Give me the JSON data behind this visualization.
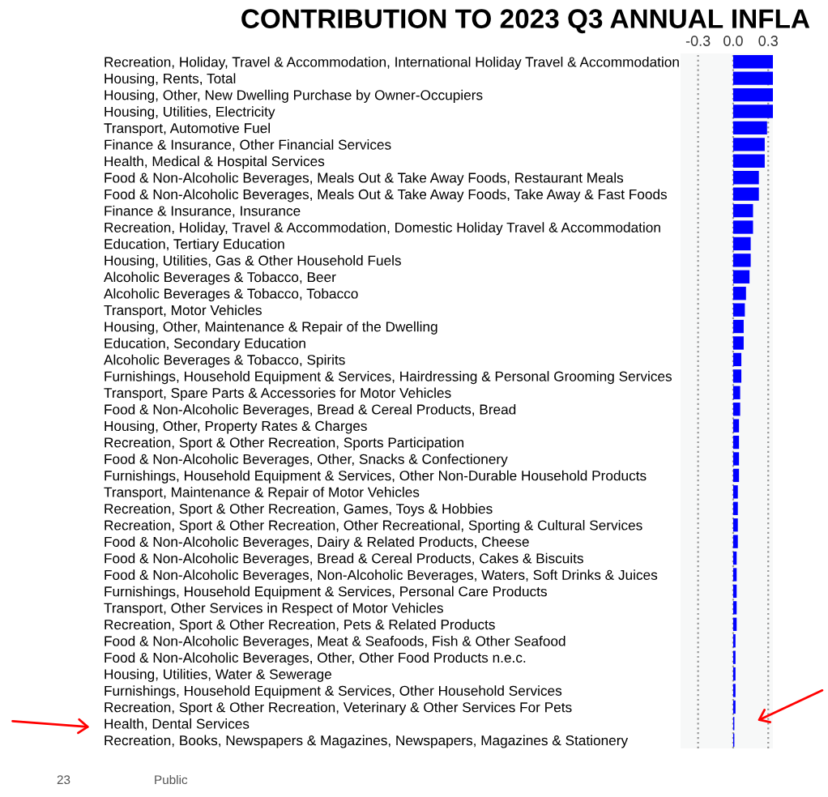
{
  "chart_data": {
    "type": "bar",
    "orientation": "horizontal",
    "title": "CONTRIBUTION TO 2023 Q3 ANNUAL INFLA",
    "categories": [
      "Recreation, Holiday, Travel & Accommodation, International Holiday Travel & Accommodation",
      "Housing, Rents, Total",
      "Housing, Other, New Dwelling Purchase by Owner-Occupiers",
      "Housing, Utilities, Electricity",
      "Transport, Automotive Fuel",
      "Finance & Insurance, Other Financial Services",
      "Health, Medical & Hospital Services",
      "Food & Non-Alcoholic Beverages, Meals Out & Take Away Foods, Restaurant Meals",
      "Food & Non-Alcoholic Beverages, Meals Out & Take Away Foods, Take Away & Fast Foods",
      "Finance & Insurance, Insurance",
      "Recreation, Holiday, Travel & Accommodation, Domestic Holiday Travel & Accommodation",
      "Education, Tertiary Education",
      "Housing, Utilities, Gas & Other Household Fuels",
      "Alcoholic Beverages & Tobacco, Beer",
      "Alcoholic Beverages & Tobacco, Tobacco",
      "Transport, Motor Vehicles",
      "Housing, Other, Maintenance & Repair of the Dwelling",
      "Education, Secondary Education",
      "Alcoholic Beverages & Tobacco, Spirits",
      "Furnishings, Household Equipment & Services, Hairdressing & Personal Grooming Services",
      "Transport, Spare Parts & Accessories for Motor Vehicles",
      "Food & Non-Alcoholic Beverages, Bread & Cereal Products, Bread",
      "Housing, Other, Property Rates & Charges",
      "Recreation, Sport & Other Recreation, Sports Participation",
      "Food & Non-Alcoholic Beverages, Other, Snacks & Confectionery",
      "Furnishings, Household Equipment & Services, Other Non-Durable Household Products",
      "Transport, Maintenance & Repair of Motor Vehicles",
      "Recreation, Sport & Other Recreation, Games, Toys & Hobbies",
      "Recreation, Sport & Other Recreation, Other Recreational, Sporting & Cultural Services",
      "Food & Non-Alcoholic Beverages, Dairy & Related Products, Cheese",
      "Food & Non-Alcoholic Beverages, Bread & Cereal Products, Cakes & Biscuits",
      "Food & Non-Alcoholic Beverages, Non-Alcoholic Beverages, Waters, Soft Drinks & Juices",
      "Furnishings, Household Equipment & Services, Personal Care Products",
      "Transport, Other Services in Respect of Motor Vehicles",
      "Recreation, Sport & Other Recreation, Pets & Related Products",
      "Food & Non-Alcoholic Beverages, Meat & Seafoods, Fish & Other Seafood",
      "Food & Non-Alcoholic Beverages, Other, Other Food Products n.e.c.",
      "Housing, Utilities, Water & Sewerage",
      "Furnishings, Household Equipment & Services, Other Household Services",
      "Recreation, Sport & Other Recreation, Veterinary & Other Services For Pets",
      "Health, Dental Services",
      "Recreation, Books, Newspapers & Magazines, Newspapers, Magazines & Stationery"
    ],
    "values": [
      0.34,
      0.34,
      0.34,
      0.34,
      0.29,
      0.27,
      0.27,
      0.22,
      0.22,
      0.17,
      0.17,
      0.15,
      0.15,
      0.14,
      0.11,
      0.1,
      0.09,
      0.09,
      0.07,
      0.07,
      0.06,
      0.06,
      0.05,
      0.05,
      0.05,
      0.05,
      0.04,
      0.04,
      0.04,
      0.04,
      0.03,
      0.03,
      0.03,
      0.03,
      0.03,
      0.02,
      0.02,
      0.02,
      0.02,
      0.02,
      0.01,
      0.01
    ],
    "color": "#0000ff",
    "xlim": [
      -0.45,
      0.34
    ],
    "xticks": [
      -0.3,
      {
        "value": 0.0,
        "label": "0.0"
      },
      0.3
    ],
    "grid": "x",
    "annotations": [
      "23",
      "Public"
    ]
  }
}
